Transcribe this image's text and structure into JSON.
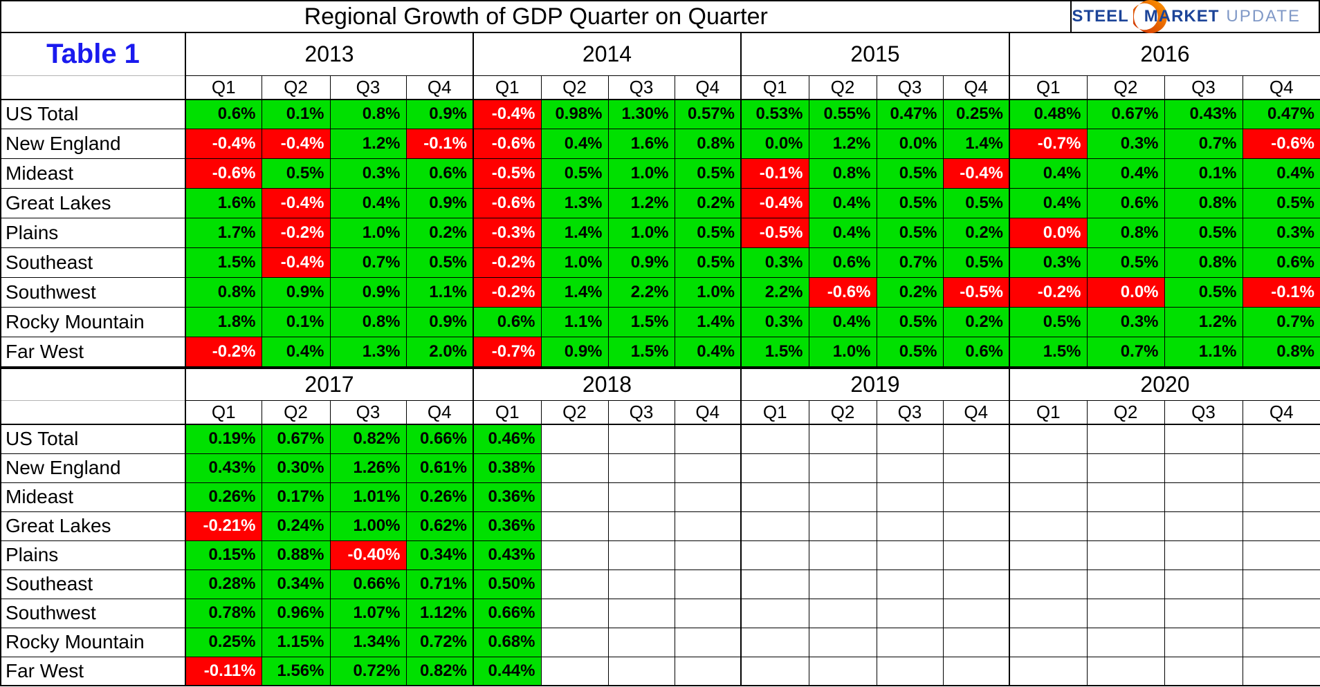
{
  "title": "Regional Growth of GDP Quarter on Quarter",
  "table_label": "Table 1",
  "logo": {
    "steel": "STEEL",
    "market": "MARKET",
    "update": "UPDATE"
  },
  "colors": {
    "positive_bg": "#00e000",
    "negative_bg": "#ff0000",
    "positive_text": "#000000",
    "negative_text": "#ffffff",
    "table_label_blue": "#1a1aee",
    "logo_blue": "#1c4498",
    "logo_light_blue": "#8099c7",
    "logo_orange_dark": "#cc2b00",
    "logo_orange_light": "#ff9a00"
  },
  "chart_data": {
    "type": "table",
    "title": "Regional Growth of GDP Quarter on Quarter",
    "quarter_labels": [
      "Q1",
      "Q2",
      "Q3",
      "Q4"
    ],
    "blocks": [
      {
        "years": [
          "2013",
          "2014",
          "2015",
          "2016"
        ],
        "corner_label": "Table 1",
        "rows": [
          {
            "region": "US Total",
            "cells": [
              "0.6%",
              "0.1%",
              "0.8%",
              "0.9%",
              "-0.4%",
              "0.98%",
              "1.30%",
              "0.57%",
              "0.53%",
              "0.55%",
              "0.47%",
              "0.25%",
              "0.48%",
              "0.67%",
              "0.43%",
              "0.47%"
            ],
            "red": [
              4
            ]
          },
          {
            "region": "New England",
            "cells": [
              "-0.4%",
              "-0.4%",
              "1.2%",
              "-0.1%",
              "-0.6%",
              "0.4%",
              "1.6%",
              "0.8%",
              "0.0%",
              "1.2%",
              "0.0%",
              "1.4%",
              "-0.7%",
              "0.3%",
              "0.7%",
              "-0.6%"
            ],
            "red": [
              0,
              1,
              3,
              4,
              12,
              15
            ]
          },
          {
            "region": "Mideast",
            "cells": [
              "-0.6%",
              "0.5%",
              "0.3%",
              "0.6%",
              "-0.5%",
              "0.5%",
              "1.0%",
              "0.5%",
              "-0.1%",
              "0.8%",
              "0.5%",
              "-0.4%",
              "0.4%",
              "0.4%",
              "0.1%",
              "0.4%"
            ],
            "red": [
              0,
              4,
              8,
              11
            ]
          },
          {
            "region": "Great Lakes",
            "cells": [
              "1.6%",
              "-0.4%",
              "0.4%",
              "0.9%",
              "-0.6%",
              "1.3%",
              "1.2%",
              "0.2%",
              "-0.4%",
              "0.4%",
              "0.5%",
              "0.5%",
              "0.4%",
              "0.6%",
              "0.8%",
              "0.5%"
            ],
            "red": [
              1,
              4,
              8
            ]
          },
          {
            "region": "Plains",
            "cells": [
              "1.7%",
              "-0.2%",
              "1.0%",
              "0.2%",
              "-0.3%",
              "1.4%",
              "1.0%",
              "0.5%",
              "-0.5%",
              "0.4%",
              "0.5%",
              "0.2%",
              "0.0%",
              "0.8%",
              "0.5%",
              "0.3%"
            ],
            "red": [
              1,
              4,
              8,
              12
            ]
          },
          {
            "region": "Southeast",
            "cells": [
              "1.5%",
              "-0.4%",
              "0.7%",
              "0.5%",
              "-0.2%",
              "1.0%",
              "0.9%",
              "0.5%",
              "0.3%",
              "0.6%",
              "0.7%",
              "0.5%",
              "0.3%",
              "0.5%",
              "0.8%",
              "0.6%"
            ],
            "red": [
              1,
              4
            ]
          },
          {
            "region": "Southwest",
            "cells": [
              "0.8%",
              "0.9%",
              "0.9%",
              "1.1%",
              "-0.2%",
              "1.4%",
              "2.2%",
              "1.0%",
              "2.2%",
              "-0.6%",
              "0.2%",
              "-0.5%",
              "-0.2%",
              "0.0%",
              "0.5%",
              "-0.1%"
            ],
            "red": [
              4,
              9,
              11,
              12,
              13,
              15
            ]
          },
          {
            "region": "Rocky Mountain",
            "cells": [
              "1.8%",
              "0.1%",
              "0.8%",
              "0.9%",
              "0.6%",
              "1.1%",
              "1.5%",
              "1.4%",
              "0.3%",
              "0.4%",
              "0.5%",
              "0.2%",
              "0.5%",
              "0.3%",
              "1.2%",
              "0.7%"
            ],
            "red": []
          },
          {
            "region": "Far West",
            "cells": [
              "-0.2%",
              "0.4%",
              "1.3%",
              "2.0%",
              "-0.7%",
              "0.9%",
              "1.5%",
              "0.4%",
              "1.5%",
              "1.0%",
              "0.5%",
              "0.6%",
              "1.5%",
              "0.7%",
              "1.1%",
              "0.8%"
            ],
            "red": [
              0,
              4
            ]
          }
        ]
      },
      {
        "years": [
          "2017",
          "2018",
          "2019",
          "2020"
        ],
        "corner_label": "",
        "rows": [
          {
            "region": "US Total",
            "cells": [
              "0.19%",
              "0.67%",
              "0.82%",
              "0.66%",
              "0.46%",
              "",
              "",
              "",
              "",
              "",
              "",
              "",
              "",
              "",
              "",
              ""
            ],
            "red": []
          },
          {
            "region": "New England",
            "cells": [
              "0.43%",
              "0.30%",
              "1.26%",
              "0.61%",
              "0.38%",
              "",
              "",
              "",
              "",
              "",
              "",
              "",
              "",
              "",
              "",
              ""
            ],
            "red": []
          },
          {
            "region": "Mideast",
            "cells": [
              "0.26%",
              "0.17%",
              "1.01%",
              "0.26%",
              "0.36%",
              "",
              "",
              "",
              "",
              "",
              "",
              "",
              "",
              "",
              "",
              ""
            ],
            "red": []
          },
          {
            "region": "Great Lakes",
            "cells": [
              "-0.21%",
              "0.24%",
              "1.00%",
              "0.62%",
              "0.36%",
              "",
              "",
              "",
              "",
              "",
              "",
              "",
              "",
              "",
              "",
              ""
            ],
            "red": [
              0
            ]
          },
          {
            "region": "Plains",
            "cells": [
              "0.15%",
              "0.88%",
              "-0.40%",
              "0.34%",
              "0.43%",
              "",
              "",
              "",
              "",
              "",
              "",
              "",
              "",
              "",
              "",
              ""
            ],
            "red": [
              2
            ]
          },
          {
            "region": "Southeast",
            "cells": [
              "0.28%",
              "0.34%",
              "0.66%",
              "0.71%",
              "0.50%",
              "",
              "",
              "",
              "",
              "",
              "",
              "",
              "",
              "",
              "",
              ""
            ],
            "red": []
          },
          {
            "region": "Southwest",
            "cells": [
              "0.78%",
              "0.96%",
              "1.07%",
              "1.12%",
              "0.66%",
              "",
              "",
              "",
              "",
              "",
              "",
              "",
              "",
              "",
              "",
              ""
            ],
            "red": []
          },
          {
            "region": "Rocky Mountain",
            "cells": [
              "0.25%",
              "1.15%",
              "1.34%",
              "0.72%",
              "0.68%",
              "",
              "",
              "",
              "",
              "",
              "",
              "",
              "",
              "",
              "",
              ""
            ],
            "red": []
          },
          {
            "region": "Far West",
            "cells": [
              "-0.11%",
              "1.56%",
              "0.72%",
              "0.82%",
              "0.44%",
              "",
              "",
              "",
              "",
              "",
              "",
              "",
              "",
              "",
              "",
              ""
            ],
            "red": [
              0
            ]
          }
        ]
      }
    ]
  }
}
